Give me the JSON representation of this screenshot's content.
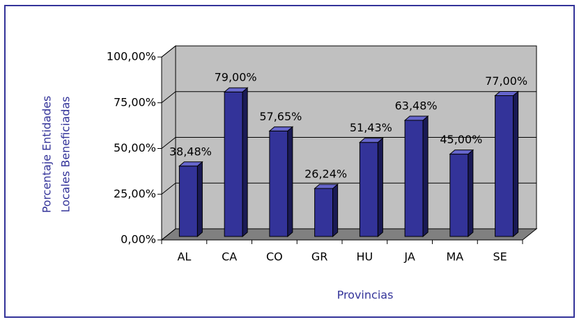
{
  "chart_data": {
    "type": "bar3d",
    "ylabel": [
      "Porcentaje Entidades",
      "Locales Beneficiadas"
    ],
    "xlabel": "Provincias",
    "categories": [
      "AL",
      "CA",
      "CO",
      "GR",
      "HU",
      "JA",
      "MA",
      "SE"
    ],
    "values": [
      38.48,
      79,
      57.65,
      26.24,
      51.43,
      63.48,
      45,
      77
    ],
    "value_labels": [
      "38,48%",
      "79,00%",
      "57,65%",
      "26,24%",
      "51,43%",
      "63,48%",
      "45,00%",
      "77,00%"
    ],
    "color": "#333399",
    "ylim": [
      0,
      100
    ],
    "yticks": [
      {
        "value": 0,
        "label": "0,00%"
      },
      {
        "value": 25,
        "label": "25,00%"
      },
      {
        "value": 50,
        "label": "50,00%"
      },
      {
        "value": 75,
        "label": "75,00%"
      },
      {
        "value": 100,
        "label": "100,00%"
      }
    ],
    "grid": true
  }
}
